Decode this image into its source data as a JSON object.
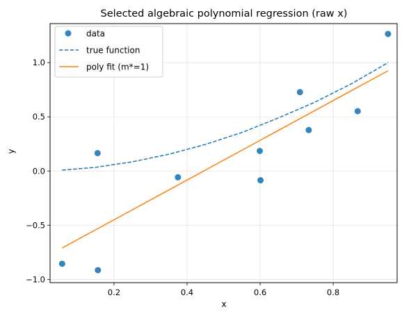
{
  "chart_data": {
    "type": "scatter",
    "title": "Selected algebraic polynomial regression (raw x)",
    "xlabel": "x",
    "ylabel": "y",
    "xlim": [
      0.025,
      0.975
    ],
    "ylim": [
      -1.03,
      1.36
    ],
    "xticks": [
      0.2,
      0.4,
      0.6,
      0.8
    ],
    "xtick_labels": [
      "0.2",
      "0.4",
      "0.6",
      "0.8"
    ],
    "yticks": [
      -1.0,
      -0.5,
      0.0,
      0.5,
      1.0
    ],
    "ytick_labels": [
      "−1.0",
      "−0.5",
      "0.0",
      "0.5",
      "1.0"
    ],
    "grid": true,
    "legend_position": "top-left",
    "colors": {
      "data": "#1f77b4",
      "true_function": "#1f77b4",
      "poly_fit": "#ff7f0e"
    },
    "series": [
      {
        "name": "data",
        "kind": "scatter",
        "points": [
          {
            "x": 0.058,
            "y": -0.855
          },
          {
            "x": 0.155,
            "y": 0.165
          },
          {
            "x": 0.156,
            "y": -0.915
          },
          {
            "x": 0.375,
            "y": -0.058
          },
          {
            "x": 0.599,
            "y": 0.185
          },
          {
            "x": 0.601,
            "y": -0.085
          },
          {
            "x": 0.709,
            "y": 0.728
          },
          {
            "x": 0.733,
            "y": 0.378
          },
          {
            "x": 0.867,
            "y": 0.552
          },
          {
            "x": 0.95,
            "y": 1.265
          }
        ]
      },
      {
        "name": "true function",
        "kind": "line",
        "style": "dashed",
        "points": [
          {
            "x": 0.058,
            "y": 0.008
          },
          {
            "x": 0.15,
            "y": 0.034
          },
          {
            "x": 0.25,
            "y": 0.085
          },
          {
            "x": 0.35,
            "y": 0.155
          },
          {
            "x": 0.45,
            "y": 0.245
          },
          {
            "x": 0.55,
            "y": 0.355
          },
          {
            "x": 0.65,
            "y": 0.49
          },
          {
            "x": 0.75,
            "y": 0.635
          },
          {
            "x": 0.85,
            "y": 0.805
          },
          {
            "x": 0.95,
            "y": 1.0
          }
        ]
      },
      {
        "name": "poly fit (m*=1)",
        "kind": "line",
        "style": "solid",
        "points": [
          {
            "x": 0.058,
            "y": -0.71
          },
          {
            "x": 0.95,
            "y": 0.925
          }
        ]
      }
    ]
  }
}
